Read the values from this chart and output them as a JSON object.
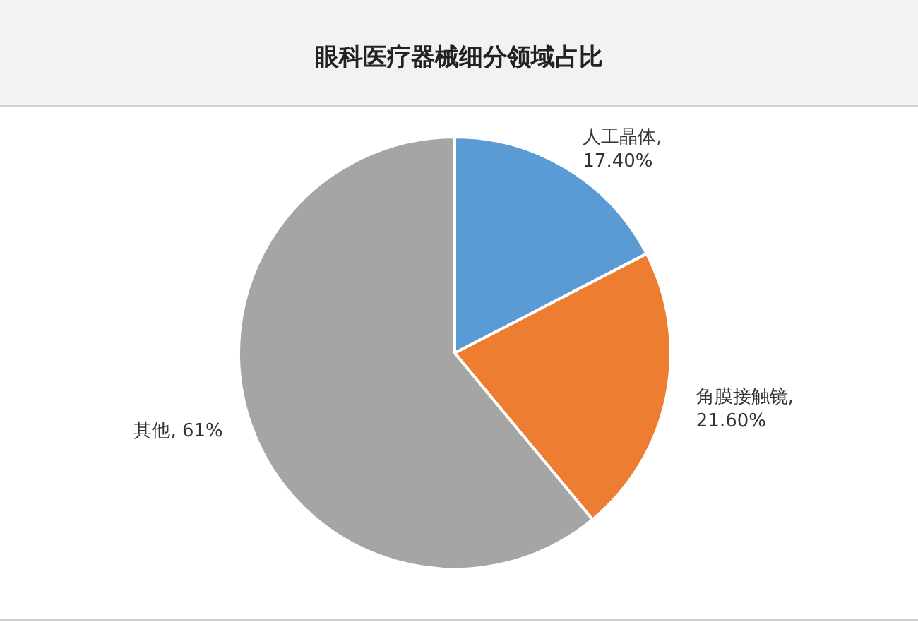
{
  "chart_data": {
    "type": "pie",
    "title": "眼科医疗器械细分领域占比",
    "categories": [
      "人工晶体",
      "角膜接触镜",
      "其他"
    ],
    "values": [
      17.4,
      21.6,
      61
    ],
    "value_labels": [
      ", 17.40%",
      ", 21.60%",
      ", 61%"
    ],
    "colors": [
      "#5b9bd5",
      "#ed7d31",
      "#a5a5a5"
    ]
  }
}
